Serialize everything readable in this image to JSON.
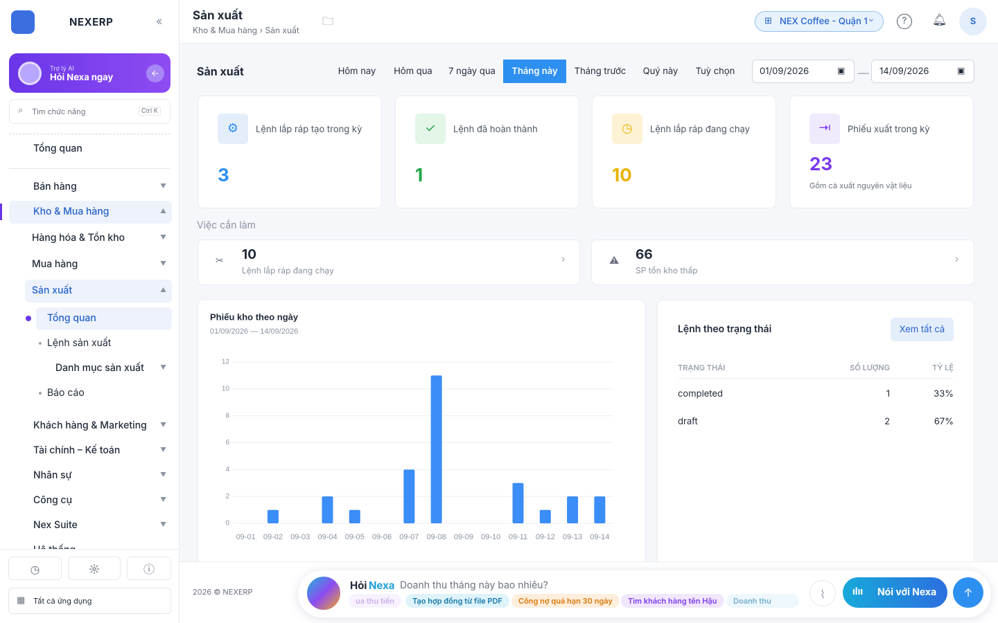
{
  "sidebar": {
    "brand": "NEXERP",
    "ai_card": {
      "label": "Trợ lý AI",
      "cta": "Hỏi Nexa ngay"
    },
    "search": {
      "placeholder": "Tìm chức năng",
      "shortcut": "Ctrl K"
    },
    "nav": [
      "Tổng quan",
      "Bán hàng",
      "Kho & Mua hàng",
      "Hàng hóa & Tồn kho",
      "Mua hàng",
      "Sản xuất",
      "Tổng quan",
      "Lệnh sản xuất",
      "Danh mục sản xuất",
      "Báo cáo",
      "Khách hàng & Marketing",
      "Tài chính – Kế toán",
      "Nhân sự",
      "Công cụ",
      "Nex Suite",
      "Hệ thống"
    ],
    "all_apps": "Tất cả ứng dụng"
  },
  "header": {
    "title": "Sản xuất",
    "breadcrumb": "Kho & Mua hàng › Sản xuất",
    "store": "NEX Coffee - Quận 1",
    "avatar": "S"
  },
  "page": {
    "title": "Sản xuất",
    "tabs": [
      "Hôm nay",
      "Hôm qua",
      "7 ngày qua",
      "Tháng này",
      "Tháng trước",
      "Quý này",
      "Tuỳ chọn"
    ],
    "date_from": "01/09/2026",
    "date_to": "14/09/2026"
  },
  "stats": [
    {
      "label": "Lệnh lắp ráp tạo trong kỳ",
      "value": 3
    },
    {
      "label": "Lệnh đã hoàn thành",
      "value": 1
    },
    {
      "label": "Lệnh lắp ráp đang chạy",
      "value": 10
    },
    {
      "label": "Phiếu xuất trong kỳ",
      "value": 23,
      "note": "Gồm cả xuất nguyên vật liệu"
    }
  ],
  "todo": {
    "title": "Việc cần làm",
    "items": [
      {
        "value": 10,
        "label": "Lệnh lắp ráp đang chạy"
      },
      {
        "value": 66,
        "label": "SP tồn kho thấp"
      }
    ]
  },
  "chart_data": {
    "type": "bar",
    "title": "Phiếu kho theo ngày",
    "subtitle": "01/09/2026 — 14/09/2026",
    "categories": [
      "09-01",
      "09-02",
      "09-03",
      "09-04",
      "09-05",
      "09-06",
      "09-07",
      "09-08",
      "09-09",
      "09-10",
      "09-11",
      "09-12",
      "09-13",
      "09-14"
    ],
    "values": [
      0,
      1,
      0,
      2,
      1,
      0,
      4,
      11,
      0,
      0,
      3,
      1,
      2,
      2
    ],
    "color": "#3b8df7",
    "ylim": [
      0,
      12
    ],
    "yticks": [
      0,
      2,
      4,
      6,
      8,
      10,
      12
    ],
    "grid": true
  },
  "status_table": {
    "title": "Lệnh theo trạng thái",
    "action": "Xem tất cả",
    "columns": [
      "TRẠNG THÁI",
      "SỐ LƯỢNG",
      "TỶ LỆ"
    ],
    "rows": [
      [
        "completed",
        "1",
        "33%"
      ],
      [
        "draft",
        "2",
        "67%"
      ]
    ]
  },
  "footer": {
    "copyright": "2026 © NEXERP",
    "ask": "Hỏi",
    "ask_name": "Nexa",
    "prompt": "Doanh thu tháng này bao nhiêu?",
    "chips": [
      "ua thu tiền",
      "Tạo hợp đồng từ file PDF",
      "Công nợ quá hạn 30 ngày",
      "Tìm khách hàng tên Hậu",
      "Doanh thu tháng"
    ],
    "voice": "Nói với Nexa"
  }
}
